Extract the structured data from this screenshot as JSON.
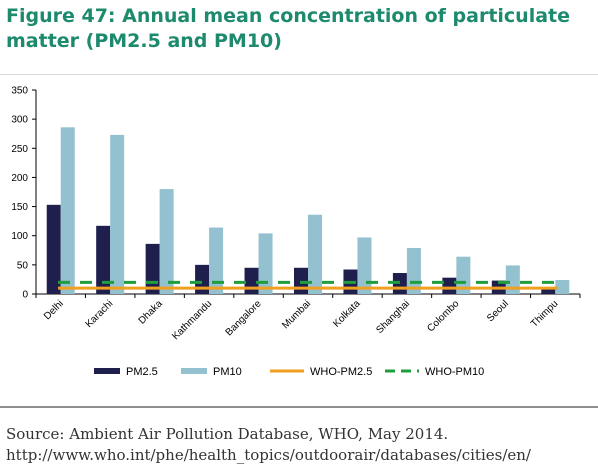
{
  "figure": {
    "title": "Figure 47: Annual mean concentration of particulate matter (PM2.5 and PM10)",
    "source": "Source: Ambient Air Pollution Database, WHO, May 2014. http://www.who.int/phe/health_topics/outdoorair/databases/cities/en/"
  },
  "chart_data": {
    "type": "bar",
    "categories": [
      "Delhi",
      "Karachi",
      "Dhaka",
      "Kathmandu",
      "Bangalore",
      "Mumbai",
      "Kolkata",
      "Shanghai",
      "Colombo",
      "Seoul",
      "Thimpu"
    ],
    "series": [
      {
        "name": "PM2.5",
        "kind": "bar",
        "color": "#1f1f4d",
        "values": [
          153,
          117,
          86,
          50,
          45,
          45,
          42,
          36,
          28,
          23,
          9
        ]
      },
      {
        "name": "PM10",
        "kind": "bar",
        "color": "#93c1cf",
        "values": [
          286,
          273,
          180,
          114,
          104,
          136,
          97,
          79,
          64,
          49,
          24
        ]
      },
      {
        "name": "WHO-PM2.5",
        "kind": "line",
        "style": "solid",
        "color": "#f0a01e",
        "value": 10
      },
      {
        "name": "WHO-PM10",
        "kind": "line",
        "style": "dashed",
        "color": "#1f9e3c",
        "value": 20
      }
    ],
    "ylim": [
      0,
      350
    ],
    "yticks": [
      0,
      50,
      100,
      150,
      200,
      250,
      300,
      350
    ],
    "grid": false,
    "legend": "bottom"
  }
}
